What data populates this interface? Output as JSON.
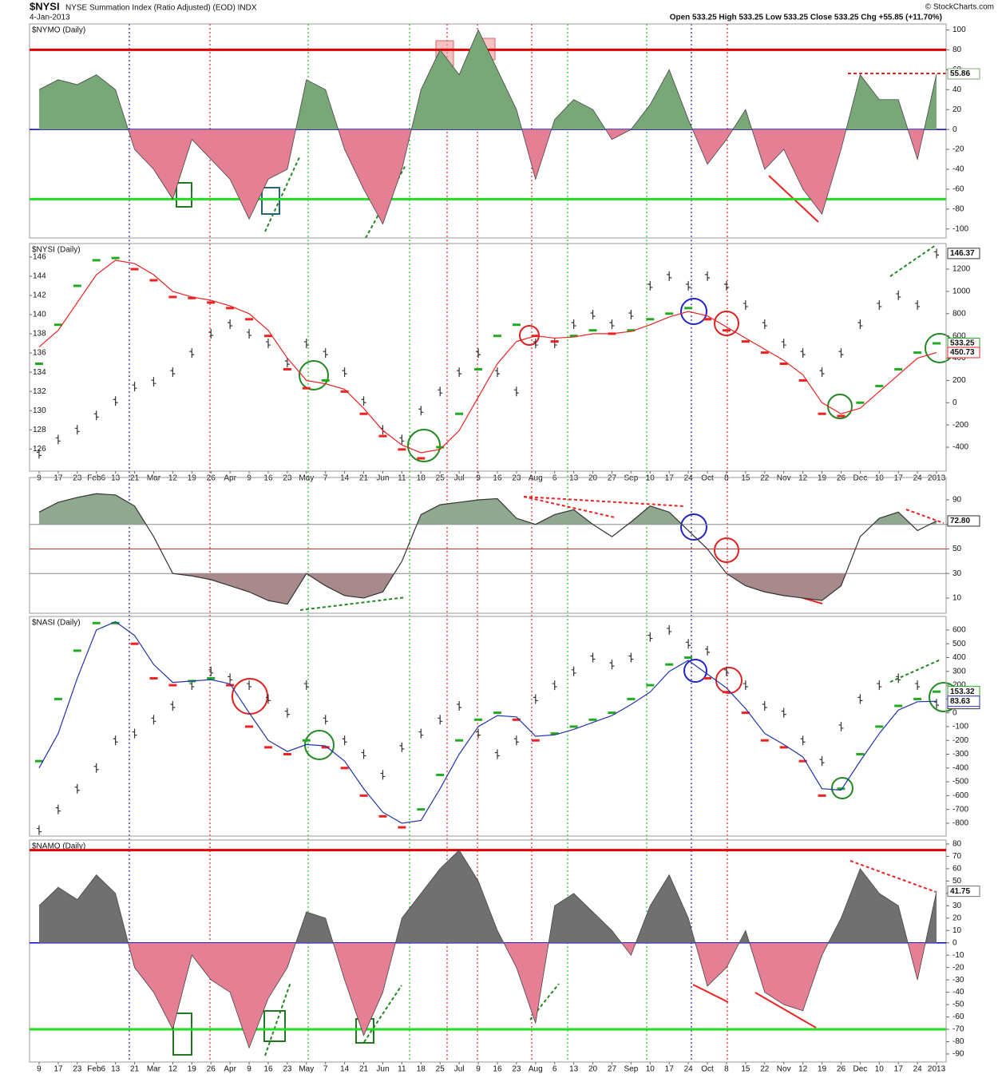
{
  "header": {
    "symbol": "$NYSI",
    "description": "NYSE Summation Index (Ratio Adjusted) (EOD) INDX",
    "date": "4-Jan-2013",
    "quote": "Open 533.25  High 533.25  Low 533.25  Close 533.25  Chg +55.85 (+11.70%)",
    "source": "© StockCharts.com"
  },
  "chart_data": [
    {
      "type": "area",
      "title": "$NYMO (Daily)",
      "ylim": [
        -109,
        106
      ],
      "yticks": [
        -100,
        -80,
        -60,
        -40,
        -20,
        0,
        20,
        40,
        60,
        80,
        100
      ],
      "hlines": [
        {
          "value": 80,
          "color": "#e00000"
        },
        {
          "value": 0,
          "color": "#0000cc"
        },
        {
          "value": -70,
          "color": "#22dd22"
        }
      ],
      "series": [
        {
          "color": "#78a878",
          "down_color": "#e57f94",
          "values": [
            40,
            50,
            45,
            55,
            40,
            -20,
            -40,
            -70,
            -10,
            -30,
            -50,
            -90,
            -50,
            -40,
            50,
            40,
            -20,
            -60,
            -95,
            -40,
            40,
            80,
            55,
            100,
            60,
            20,
            -50,
            10,
            30,
            20,
            -10,
            0,
            25,
            60,
            10,
            -35,
            -10,
            20,
            -40,
            -20,
            -60,
            -85,
            -20,
            55,
            30,
            30,
            -30,
            55.86
          ]
        }
      ]
    },
    {
      "type": "line",
      "title": "$NYSI (Daily)",
      "categories": [
        "9",
        "17",
        "23",
        "Feb6",
        "13",
        "21",
        "Mar",
        "12",
        "19",
        "26",
        "Apr",
        "9",
        "16",
        "23",
        "May",
        "7",
        "14",
        "21",
        "Jun",
        "11",
        "18",
        "25",
        "Jul",
        "9",
        "16",
        "23",
        "Aug",
        "6",
        "13",
        "20",
        "27",
        "Sep",
        "10",
        "17",
        "24",
        "Oct",
        "8",
        "15",
        "22",
        "Nov",
        "12",
        "19",
        "26",
        "Dec",
        "10",
        "17",
        "24",
        "2013"
      ],
      "ylim": [
        123.7,
        147.4
      ],
      "yticks": [
        126,
        128,
        130,
        132,
        134,
        136,
        138,
        140,
        142,
        144,
        146
      ],
      "y2lim": [
        -615,
        1430
      ],
      "y2ticks": [
        -400,
        -200,
        0,
        200,
        400,
        600,
        800,
        1000,
        1200
      ],
      "series": [
        {
          "style": "bars",
          "color": "#333333",
          "values": [
            125.5,
            127,
            128,
            129.5,
            131,
            132.5,
            133,
            134,
            136,
            138,
            139,
            138,
            137,
            135,
            137,
            136,
            134,
            131,
            128,
            127,
            130,
            132,
            134,
            136,
            134,
            132,
            137,
            137,
            139,
            140,
            139,
            140,
            143,
            144,
            143,
            144,
            143,
            141,
            139,
            137,
            136,
            134,
            136,
            139,
            141,
            142,
            141,
            146.37
          ]
        },
        {
          "style": "dashes",
          "axis": "y2",
          "up_color": "#22aa22",
          "down_color": "#ee2222",
          "values": [
            350,
            700,
            1050,
            1280,
            1300,
            1200,
            1100,
            950,
            940,
            900,
            850,
            750,
            600,
            300,
            130,
            200,
            100,
            -100,
            -300,
            -420,
            -500,
            -400,
            -100,
            300,
            600,
            700,
            600,
            550,
            600,
            650,
            620,
            650,
            750,
            800,
            850,
            750,
            650,
            550,
            450,
            350,
            200,
            -100,
            -120,
            0,
            150,
            300,
            450,
            533.25
          ]
        },
        {
          "style": "line",
          "axis": "y2",
          "color": "#ee2222",
          "values": [
            500,
            650,
            900,
            1150,
            1280,
            1250,
            1150,
            1000,
            950,
            920,
            870,
            800,
            650,
            400,
            200,
            170,
            120,
            -50,
            -250,
            -380,
            -450,
            -420,
            -250,
            50,
            350,
            550,
            600,
            580,
            590,
            620,
            620,
            640,
            700,
            770,
            820,
            780,
            680,
            580,
            480,
            380,
            250,
            0,
            -100,
            -50,
            100,
            250,
            400,
            450.73
          ]
        }
      ]
    },
    {
      "type": "line",
      "ylim": [
        -2.4,
        108.2
      ],
      "yticks": [
        10,
        30,
        50,
        70,
        90
      ],
      "hlines": [
        {
          "value": 70,
          "color": "#888888"
        },
        {
          "value": 50,
          "color": "#cc3333"
        },
        {
          "value": 30,
          "color": "#888888"
        }
      ],
      "bands": [
        {
          "value": 70,
          "side": "above",
          "color": "#8fa88f"
        },
        {
          "value": 30,
          "side": "below",
          "color": "#a98a8c"
        }
      ],
      "series": [
        {
          "style": "line",
          "color": "#333333",
          "values": [
            80,
            88,
            92,
            95,
            94,
            85,
            60,
            30,
            28,
            25,
            20,
            15,
            8,
            5,
            30,
            20,
            12,
            10,
            15,
            40,
            78,
            86,
            88,
            90,
            91,
            75,
            70,
            78,
            82,
            70,
            60,
            72,
            85,
            80,
            65,
            50,
            30,
            20,
            15,
            12,
            10,
            8,
            20,
            60,
            75,
            80,
            65,
            72.8
          ],
          "value_labels": [
            null,
            null,
            null,
            null,
            null,
            null,
            null,
            null,
            null,
            null,
            null,
            null,
            null,
            null,
            null,
            null,
            null,
            null,
            null,
            null,
            null,
            null,
            null,
            null,
            null,
            null,
            null,
            null,
            null,
            null,
            null,
            null,
            null,
            null,
            null,
            null,
            null,
            null,
            null,
            null,
            null,
            null,
            null,
            null,
            null,
            null,
            null,
            "72.80"
          ]
        }
      ]
    },
    {
      "type": "line",
      "title": "$NASI (Daily)",
      "ylim": [
        -893,
        698
      ],
      "yticks": [
        -800,
        -700,
        -600,
        -500,
        -400,
        -300,
        -200,
        -100,
        0,
        100,
        200,
        300,
        400,
        500,
        600
      ],
      "series": [
        {
          "style": "bars",
          "color": "#333333",
          "values": [
            -850,
            -700,
            -550,
            -400,
            -200,
            -150,
            -50,
            50,
            200,
            300,
            250,
            200,
            100,
            0,
            200,
            -50,
            -200,
            -300,
            -450,
            -250,
            -150,
            -50,
            50,
            -150,
            -300,
            -200,
            100,
            200,
            300,
            400,
            350,
            400,
            550,
            600,
            500,
            450,
            300,
            200,
            50,
            0,
            -200,
            -350,
            -100,
            100,
            200,
            250,
            200,
            66.63
          ]
        },
        {
          "style": "dashes",
          "up_color": "#22aa22",
          "down_color": "#ee2222",
          "values": [
            -350,
            100,
            450,
            650,
            650,
            500,
            250,
            200,
            230,
            250,
            200,
            -100,
            -250,
            -300,
            -200,
            -250,
            -400,
            -600,
            -750,
            -830,
            -700,
            -450,
            -200,
            -50,
            0,
            -50,
            -200,
            -150,
            -100,
            -50,
            0,
            100,
            200,
            350,
            400,
            250,
            150,
            0,
            -200,
            -250,
            -350,
            -600,
            -550,
            -300,
            -100,
            50,
            100,
            153.32
          ]
        },
        {
          "style": "line",
          "color": "#2233aa",
          "values": [
            -400,
            -150,
            250,
            600,
            660,
            560,
            350,
            220,
            230,
            240,
            210,
            0,
            -200,
            -280,
            -230,
            -240,
            -350,
            -550,
            -720,
            -800,
            -780,
            -550,
            -300,
            -100,
            -20,
            -30,
            -170,
            -160,
            -120,
            -70,
            -20,
            60,
            150,
            300,
            380,
            280,
            180,
            30,
            -150,
            -230,
            -320,
            -550,
            -560,
            -350,
            -150,
            20,
            80,
            83.63
          ]
        }
      ]
    },
    {
      "type": "area",
      "title": "$NAMO (Daily)",
      "categories": [
        "9",
        "17",
        "23",
        "Feb6",
        "13",
        "21",
        "Mar",
        "12",
        "19",
        "26",
        "Apr",
        "9",
        "16",
        "23",
        "May",
        "7",
        "14",
        "21",
        "Jun",
        "11",
        "18",
        "25",
        "Jul",
        "9",
        "16",
        "23",
        "Aug",
        "6",
        "13",
        "20",
        "27",
        "Sep",
        "10",
        "17",
        "24",
        "Oct",
        "8",
        "15",
        "22",
        "Nov",
        "12",
        "19",
        "26",
        "Dec",
        "10",
        "17",
        "24",
        "2013"
      ],
      "ylim": [
        -96.5,
        83.2
      ],
      "yticks": [
        -90,
        -80,
        -70,
        -60,
        -50,
        -40,
        -30,
        -20,
        -10,
        0,
        10,
        20,
        30,
        40,
        50,
        60,
        70,
        80
      ],
      "hlines": [
        {
          "value": 75,
          "color": "#e00000"
        },
        {
          "value": 0,
          "color": "#0000cc"
        },
        {
          "value": -70,
          "color": "#22dd22"
        }
      ],
      "series": [
        {
          "color": "#707070",
          "down_color": "#e57f94",
          "values": [
            30,
            45,
            35,
            55,
            40,
            -20,
            -40,
            -70,
            -10,
            -30,
            -40,
            -85,
            -45,
            -20,
            25,
            20,
            -30,
            -75,
            -40,
            20,
            40,
            60,
            75,
            50,
            10,
            -20,
            -65,
            30,
            40,
            25,
            10,
            -10,
            30,
            55,
            20,
            -35,
            -20,
            10,
            -40,
            -50,
            -55,
            -10,
            20,
            60,
            40,
            30,
            -30,
            41.75
          ]
        }
      ]
    }
  ]
}
